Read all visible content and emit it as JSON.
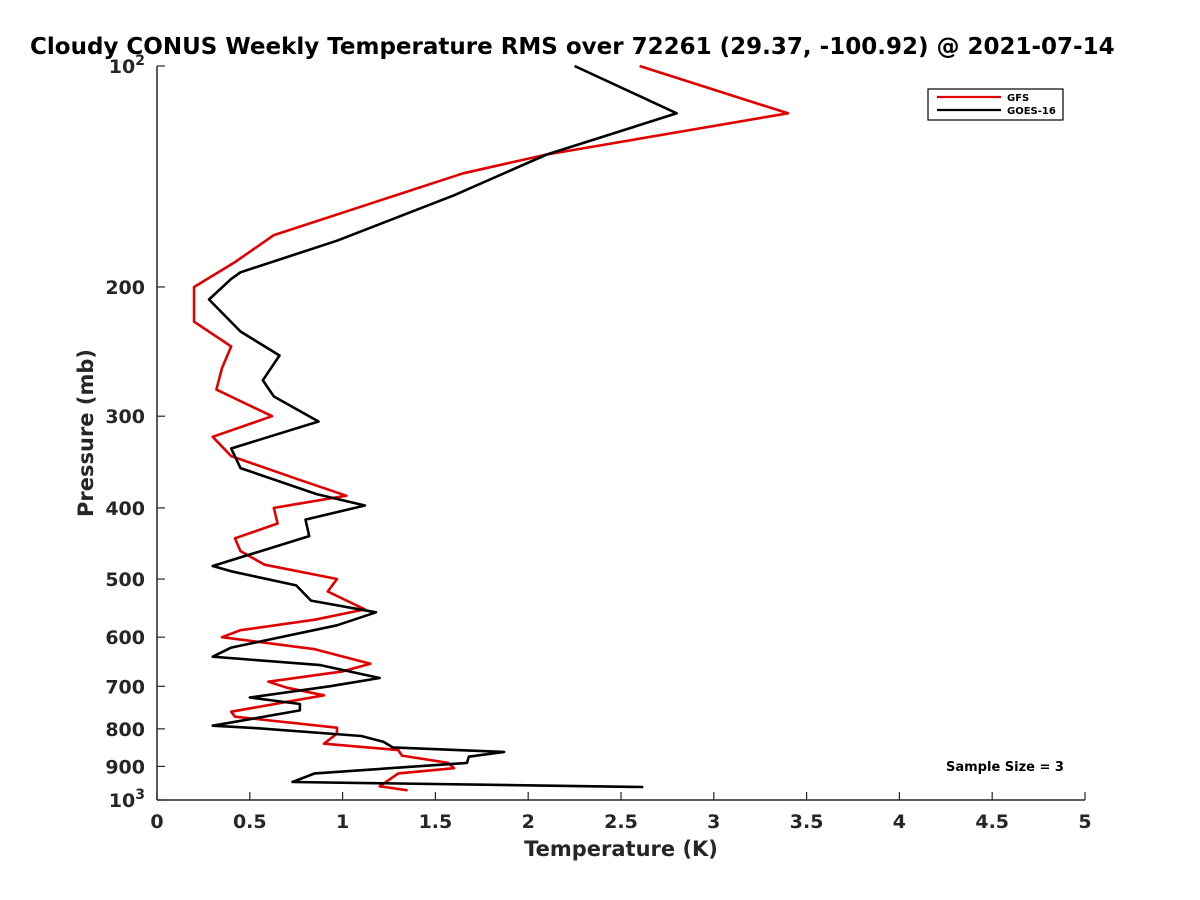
{
  "chart_data": {
    "type": "line",
    "title": "Cloudy CONUS Weekly Temperature RMS over 72261 (29.37, -100.92) @ 2021-07-14",
    "xlabel": "Temperature (K)",
    "ylabel": "Pressure (mb)",
    "xlim": [
      0,
      5
    ],
    "ylim": [
      100,
      1000
    ],
    "y_scale": "log",
    "y_reversed": true,
    "grid": false,
    "legend_position": "top-right",
    "x_ticks": [
      {
        "value": 0,
        "label": "0"
      },
      {
        "value": 0.5,
        "label": "0.5"
      },
      {
        "value": 1,
        "label": "1"
      },
      {
        "value": 1.5,
        "label": "1.5"
      },
      {
        "value": 2,
        "label": "2"
      },
      {
        "value": 2.5,
        "label": "2.5"
      },
      {
        "value": 3,
        "label": "3"
      },
      {
        "value": 3.5,
        "label": "3.5"
      },
      {
        "value": 4,
        "label": "4"
      },
      {
        "value": 4.5,
        "label": "4.5"
      },
      {
        "value": 5,
        "label": "5"
      }
    ],
    "y_ticks": [
      {
        "value": 100,
        "label": "10",
        "sup": "2"
      },
      {
        "value": 200,
        "label": "200",
        "sup": ""
      },
      {
        "value": 300,
        "label": "300",
        "sup": ""
      },
      {
        "value": 400,
        "label": "400",
        "sup": ""
      },
      {
        "value": 500,
        "label": "500",
        "sup": ""
      },
      {
        "value": 600,
        "label": "600",
        "sup": ""
      },
      {
        "value": 700,
        "label": "700",
        "sup": ""
      },
      {
        "value": 800,
        "label": "800",
        "sup": ""
      },
      {
        "value": 900,
        "label": "900",
        "sup": ""
      },
      {
        "value": 1000,
        "label": "10",
        "sup": "3"
      }
    ],
    "series": [
      {
        "name": "GFS",
        "color": "#e00000",
        "points": [
          [
            2.6,
            100
          ],
          [
            3.4,
            116
          ],
          [
            2.1,
            132
          ],
          [
            1.65,
            140
          ],
          [
            0.63,
            170
          ],
          [
            0.42,
            185
          ],
          [
            0.2,
            200
          ],
          [
            0.2,
            223
          ],
          [
            0.4,
            241
          ],
          [
            0.35,
            258
          ],
          [
            0.32,
            276
          ],
          [
            0.62,
            300
          ],
          [
            0.3,
            320
          ],
          [
            0.4,
            340
          ],
          [
            0.75,
            365
          ],
          [
            1.02,
            385
          ],
          [
            0.63,
            400
          ],
          [
            0.65,
            420
          ],
          [
            0.42,
            440
          ],
          [
            0.45,
            458
          ],
          [
            0.58,
            478
          ],
          [
            0.97,
            500
          ],
          [
            0.92,
            520
          ],
          [
            1.12,
            550
          ],
          [
            0.85,
            568
          ],
          [
            0.45,
            587
          ],
          [
            0.35,
            600
          ],
          [
            0.85,
            623
          ],
          [
            1.15,
            652
          ],
          [
            1.0,
            668
          ],
          [
            0.6,
            690
          ],
          [
            0.7,
            703
          ],
          [
            0.9,
            720
          ],
          [
            0.4,
            758
          ],
          [
            0.42,
            770
          ],
          [
            0.97,
            797
          ],
          [
            0.97,
            812
          ],
          [
            0.9,
            838
          ],
          [
            1.3,
            855
          ],
          [
            1.32,
            870
          ],
          [
            1.57,
            890
          ],
          [
            1.6,
            905
          ],
          [
            1.3,
            920
          ],
          [
            1.2,
            958
          ],
          [
            1.35,
            970
          ]
        ]
      },
      {
        "name": "GOES-16",
        "color": "#000000",
        "points": [
          [
            2.25,
            100
          ],
          [
            2.8,
            116
          ],
          [
            2.1,
            132
          ],
          [
            1.6,
            150
          ],
          [
            0.97,
            173
          ],
          [
            0.45,
            191
          ],
          [
            0.4,
            195
          ],
          [
            0.28,
            208
          ],
          [
            0.45,
            230
          ],
          [
            0.66,
            248
          ],
          [
            0.57,
            268
          ],
          [
            0.63,
            282
          ],
          [
            0.87,
            305
          ],
          [
            0.4,
            332
          ],
          [
            0.45,
            353
          ],
          [
            0.86,
            383
          ],
          [
            1.12,
            397
          ],
          [
            0.8,
            415
          ],
          [
            0.82,
            437
          ],
          [
            0.3,
            480
          ],
          [
            0.4,
            488
          ],
          [
            0.75,
            510
          ],
          [
            0.83,
            535
          ],
          [
            1.18,
            555
          ],
          [
            0.97,
            578
          ],
          [
            0.4,
            620
          ],
          [
            0.3,
            638
          ],
          [
            0.88,
            655
          ],
          [
            1.2,
            682
          ],
          [
            0.93,
            700
          ],
          [
            0.5,
            725
          ],
          [
            0.77,
            740
          ],
          [
            0.77,
            755
          ],
          [
            0.3,
            792
          ],
          [
            0.53,
            798
          ],
          [
            1.1,
            818
          ],
          [
            1.22,
            833
          ],
          [
            1.27,
            848
          ],
          [
            1.87,
            860
          ],
          [
            1.68,
            873
          ],
          [
            1.67,
            890
          ],
          [
            0.85,
            920
          ],
          [
            0.73,
            945
          ],
          [
            2.62,
            960
          ]
        ]
      }
    ],
    "annotations": [
      {
        "text": "Sample Size = 3",
        "position": "bottom-right"
      }
    ]
  }
}
